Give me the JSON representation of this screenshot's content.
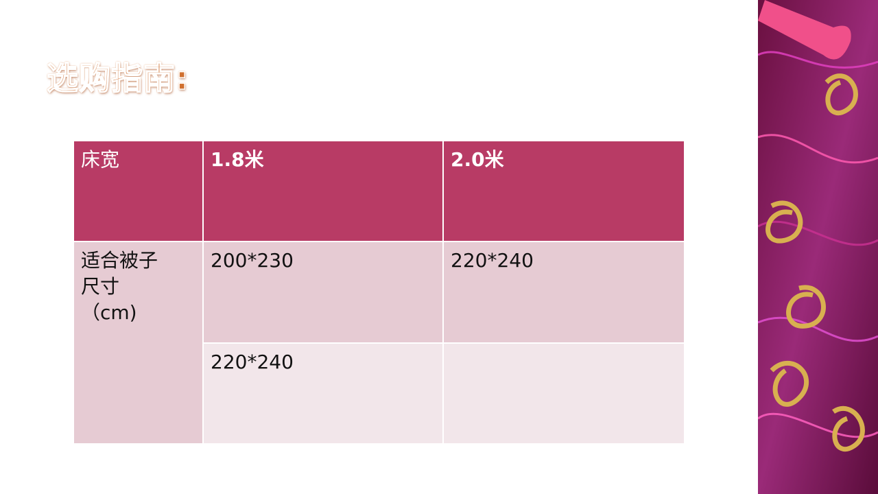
{
  "header": {
    "title": "选购指南:"
  },
  "table": {
    "columns": [
      "床宽",
      "1.8米",
      "2.0米"
    ],
    "row_label_lines": [
      "适合被子",
      "尺寸",
      "（cm)"
    ],
    "rows": [
      [
        "200*230",
        "220*240"
      ],
      [
        "220*240"
      ]
    ]
  }
}
